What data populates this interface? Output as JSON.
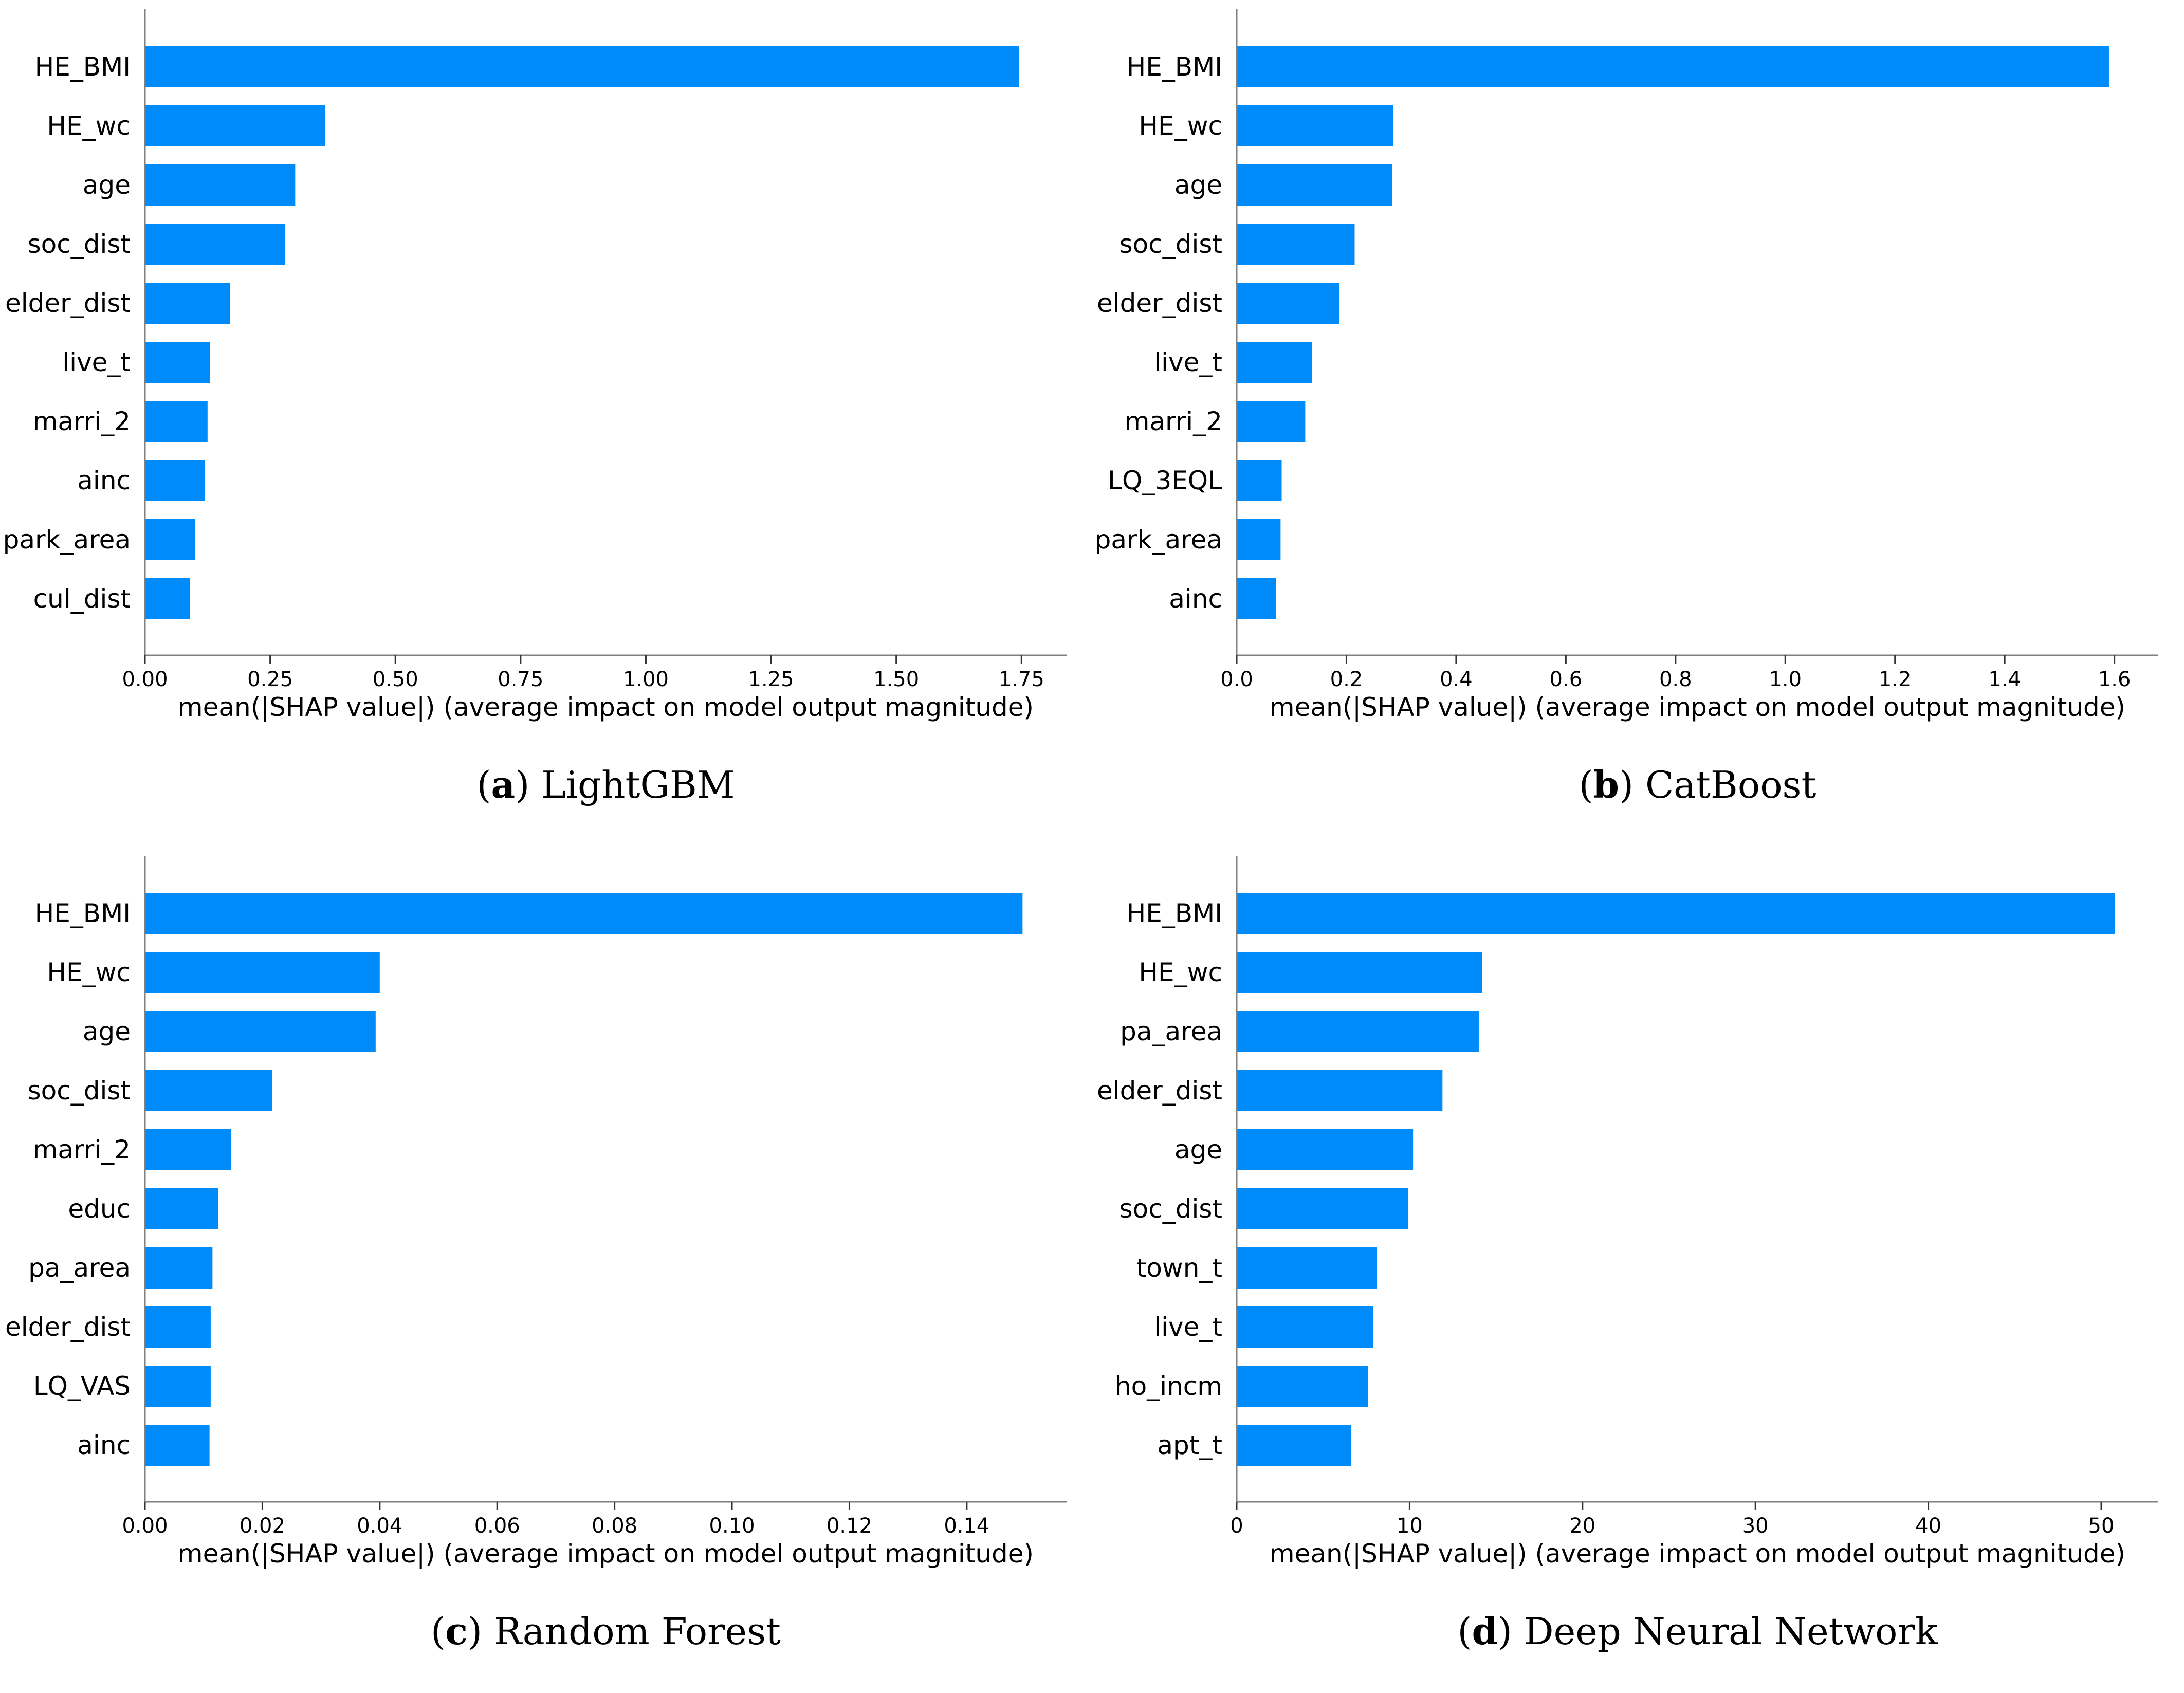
{
  "chart_data": [
    {
      "type": "bar",
      "orientation": "horizontal",
      "caption_letter": "a",
      "caption_text": "LightGBM",
      "xlabel": "mean(|SHAP value|) (average impact on model output magnitude)",
      "ylabel": "",
      "categories": [
        "HE_BMI",
        "HE_wc",
        "age",
        "soc_dist",
        "elder_dist",
        "live_t",
        "marri_2",
        "ainc",
        "park_area",
        "cul_dist"
      ],
      "values": [
        1.745,
        0.36,
        0.3,
        0.28,
        0.17,
        0.13,
        0.125,
        0.12,
        0.1,
        0.09
      ],
      "xlim": [
        0,
        1.84
      ],
      "xticks": [
        0,
        0.25,
        0.5,
        0.75,
        1.0,
        1.25,
        1.5,
        1.75
      ],
      "xtick_labels": [
        "0.00",
        "0.25",
        "0.50",
        "0.75",
        "1.00",
        "1.25",
        "1.50",
        "1.75"
      ],
      "grid": false
    },
    {
      "type": "bar",
      "orientation": "horizontal",
      "caption_letter": "b",
      "caption_text": "CatBoost",
      "xlabel": "mean(|SHAP value|) (average impact on model output magnitude)",
      "ylabel": "",
      "categories": [
        "HE_BMI",
        "HE_wc",
        "age",
        "soc_dist",
        "elder_dist",
        "live_t",
        "marri_2",
        "LQ_3EQL",
        "park_area",
        "ainc"
      ],
      "values": [
        1.59,
        0.285,
        0.283,
        0.215,
        0.187,
        0.137,
        0.125,
        0.082,
        0.08,
        0.072
      ],
      "xlim": [
        0,
        1.68
      ],
      "xticks": [
        0,
        0.2,
        0.4,
        0.6,
        0.8,
        1.0,
        1.2,
        1.4,
        1.6
      ],
      "xtick_labels": [
        "0.0",
        "0.2",
        "0.4",
        "0.6",
        "0.8",
        "1.0",
        "1.2",
        "1.4",
        "1.6"
      ],
      "grid": false
    },
    {
      "type": "bar",
      "orientation": "horizontal",
      "caption_letter": "c",
      "caption_text": "Random Forest",
      "xlabel": "mean(|SHAP value|) (average impact on model output magnitude)",
      "ylabel": "",
      "categories": [
        "HE_BMI",
        "HE_wc",
        "age",
        "soc_dist",
        "marri_2",
        "educ",
        "pa_area",
        "elder_dist",
        "LQ_VAS",
        "ainc"
      ],
      "values": [
        0.1495,
        0.04,
        0.0393,
        0.0217,
        0.0147,
        0.0125,
        0.0115,
        0.0112,
        0.0112,
        0.011
      ],
      "xlim": [
        0,
        0.157
      ],
      "xticks": [
        0,
        0.02,
        0.04,
        0.06,
        0.08,
        0.1,
        0.12,
        0.14
      ],
      "xtick_labels": [
        "0.00",
        "0.02",
        "0.04",
        "0.06",
        "0.08",
        "0.10",
        "0.12",
        "0.14"
      ],
      "grid": false
    },
    {
      "type": "bar",
      "orientation": "horizontal",
      "caption_letter": "d",
      "caption_text": "Deep Neural Network",
      "xlabel": "mean(|SHAP value|) (average impact on model output magnitude)",
      "ylabel": "",
      "categories": [
        "HE_BMI",
        "HE_wc",
        "pa_area",
        "elder_dist",
        "age",
        "soc_dist",
        "town_t",
        "live_t",
        "ho_incm",
        "apt_t"
      ],
      "values": [
        50.8,
        14.2,
        14.0,
        11.9,
        10.2,
        9.9,
        8.1,
        7.9,
        7.6,
        6.6
      ],
      "xlim": [
        0,
        53.3
      ],
      "xticks": [
        0,
        10,
        20,
        30,
        40,
        50
      ],
      "xtick_labels": [
        "0",
        "10",
        "20",
        "30",
        "40",
        "50"
      ],
      "grid": false
    }
  ],
  "colors": {
    "bar": "#008bfb"
  }
}
